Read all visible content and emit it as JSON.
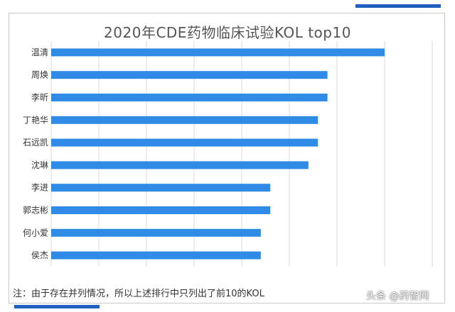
{
  "chart_data": {
    "type": "bar",
    "orientation": "horizontal",
    "title": "2020年CDE药物临床试验KOL top10",
    "categories": [
      "温清",
      "周焕",
      "李昕",
      "丁艳华",
      "石远凯",
      "沈琳",
      "李进",
      "郭志彬",
      "何小爱",
      "侯杰"
    ],
    "values": [
      35,
      29,
      29,
      28,
      28,
      27,
      23,
      23,
      22,
      22
    ],
    "xlim": [
      0,
      40
    ],
    "grid": true,
    "bar_color": "#2f8be6"
  },
  "footnote": "注：由于存在并列情况，所以上述排行中只列出了前10的KOL",
  "watermark": "头条 @药智网"
}
